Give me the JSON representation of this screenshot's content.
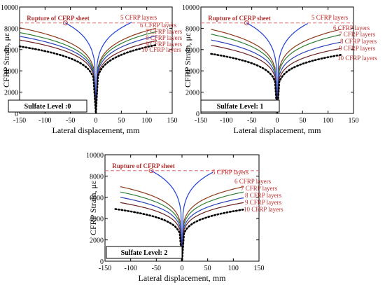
{
  "chart_data": [
    {
      "type": "line",
      "xlabel": "Lateral displacement, mm",
      "ylabel": "CFRP Strain, με",
      "xlim": [
        -150,
        150
      ],
      "ylim": [
        0,
        10000
      ],
      "xticks": [
        "-150",
        "-100",
        "-50",
        "0",
        "50",
        "100",
        "150"
      ],
      "yticks": [
        "0",
        "2000",
        "4000",
        "6000",
        "8000",
        "10000"
      ],
      "rupture_strain": 8500,
      "rupture_label": "Rupture of CFRP sheet",
      "panel_label": "Sulfate Level :0",
      "series": [
        {
          "name": "5 CFRP layers",
          "color": "#1f3fd6",
          "dotted": false,
          "left_end": [
            -60,
            8500
          ],
          "right_end": [
            70,
            8550
          ]
        },
        {
          "name": "6 CFRP layers",
          "color": "#8a3a1a",
          "dotted": false,
          "left_end": [
            -150,
            8050
          ],
          "right_end": [
            118,
            8000
          ]
        },
        {
          "name": "7 CFRP layers",
          "color": "#2e7d32",
          "dotted": false,
          "left_end": [
            -150,
            7600
          ],
          "right_end": [
            120,
            7700
          ]
        },
        {
          "name": "8 CFRP layers",
          "color": "#2a3fb8",
          "dotted": false,
          "left_end": [
            -150,
            7250
          ],
          "right_end": [
            120,
            7300
          ]
        },
        {
          "name": "9 CFRP layers",
          "color": "#6b1f1f",
          "dotted": false,
          "left_end": [
            -150,
            6900
          ],
          "right_end": [
            120,
            6850
          ]
        },
        {
          "name": "10 CFRP layers",
          "color": "#000000",
          "dotted": true,
          "left_end": [
            -150,
            6300
          ],
          "right_end": [
            120,
            6450
          ]
        }
      ]
    },
    {
      "type": "line",
      "xlabel": "Lateral displacement, mm",
      "ylabel": "CFRP Strain, με",
      "xlim": [
        -150,
        150
      ],
      "ylim": [
        0,
        10000
      ],
      "xticks": [
        "-150",
        "-100",
        "-50",
        "0",
        "50",
        "100",
        "150"
      ],
      "yticks": [
        "0",
        "2000",
        "4000",
        "6000",
        "8000",
        "10000"
      ],
      "rupture_strain": 8500,
      "rupture_label": "Rupture of CFRP sheet",
      "panel_label": "Sulfate Level: 1",
      "series": [
        {
          "name": "5 CFRP layers",
          "color": "#1f3fd6",
          "dotted": false,
          "left_end": [
            -60,
            8500
          ],
          "right_end": [
            60,
            8450
          ]
        },
        {
          "name": "6 CFRP layers",
          "color": "#8a3a1a",
          "dotted": false,
          "left_end": [
            -130,
            7900
          ],
          "right_end": [
            125,
            7900
          ]
        },
        {
          "name": "7 CFRP layers",
          "color": "#2e7d32",
          "dotted": false,
          "left_end": [
            -130,
            7450
          ],
          "right_end": [
            125,
            7400
          ]
        },
        {
          "name": "8 CFRP layers",
          "color": "#2a3fb8",
          "dotted": false,
          "left_end": [
            -130,
            6900
          ],
          "right_end": [
            125,
            6700
          ]
        },
        {
          "name": "9 CFRP layers",
          "color": "#6b1f1f",
          "dotted": false,
          "left_end": [
            -130,
            6400
          ],
          "right_end": [
            125,
            6100
          ]
        },
        {
          "name": "10 CFRP layers",
          "color": "#000000",
          "dotted": true,
          "left_end": [
            -130,
            5600
          ],
          "right_end": [
            125,
            5500
          ]
        }
      ]
    },
    {
      "type": "line",
      "xlabel": "Lateral displacement, mm",
      "ylabel": "CFRP Strain, με",
      "xlim": [
        -150,
        150
      ],
      "ylim": [
        0,
        10000
      ],
      "xticks": [
        "-150",
        "-100",
        "-50",
        "0",
        "50",
        "100",
        "150"
      ],
      "yticks": [
        "0",
        "2000",
        "4000",
        "6000",
        "8000",
        "10000"
      ],
      "rupture_strain": 8500,
      "rupture_label": "Rupture of CFRP sheet",
      "panel_label": "Sulfate Level: 2",
      "series": [
        {
          "name": "5 CFRP layers",
          "color": "#1f3fd6",
          "dotted": false,
          "left_end": [
            -60,
            8500
          ],
          "right_end": [
            60,
            8350
          ]
        },
        {
          "name": "6 CFRP layers",
          "color": "#8a3a1a",
          "dotted": false,
          "left_end": [
            -120,
            7000
          ],
          "right_end": [
            120,
            7000
          ]
        },
        {
          "name": "7 CFRP layers",
          "color": "#2e7d32",
          "dotted": false,
          "left_end": [
            -120,
            6500
          ],
          "right_end": [
            120,
            6500
          ]
        },
        {
          "name": "8 CFRP layers",
          "color": "#2a3fb8",
          "dotted": false,
          "left_end": [
            -120,
            6000
          ],
          "right_end": [
            120,
            5950
          ]
        },
        {
          "name": "9 CFRP layers",
          "color": "#6b1f1f",
          "dotted": false,
          "left_end": [
            -120,
            5500
          ],
          "right_end": [
            120,
            5500
          ]
        },
        {
          "name": "10 CFRP layers",
          "color": "#000000",
          "dotted": true,
          "left_end": [
            -130,
            4900
          ],
          "right_end": [
            120,
            4850
          ]
        }
      ]
    }
  ]
}
